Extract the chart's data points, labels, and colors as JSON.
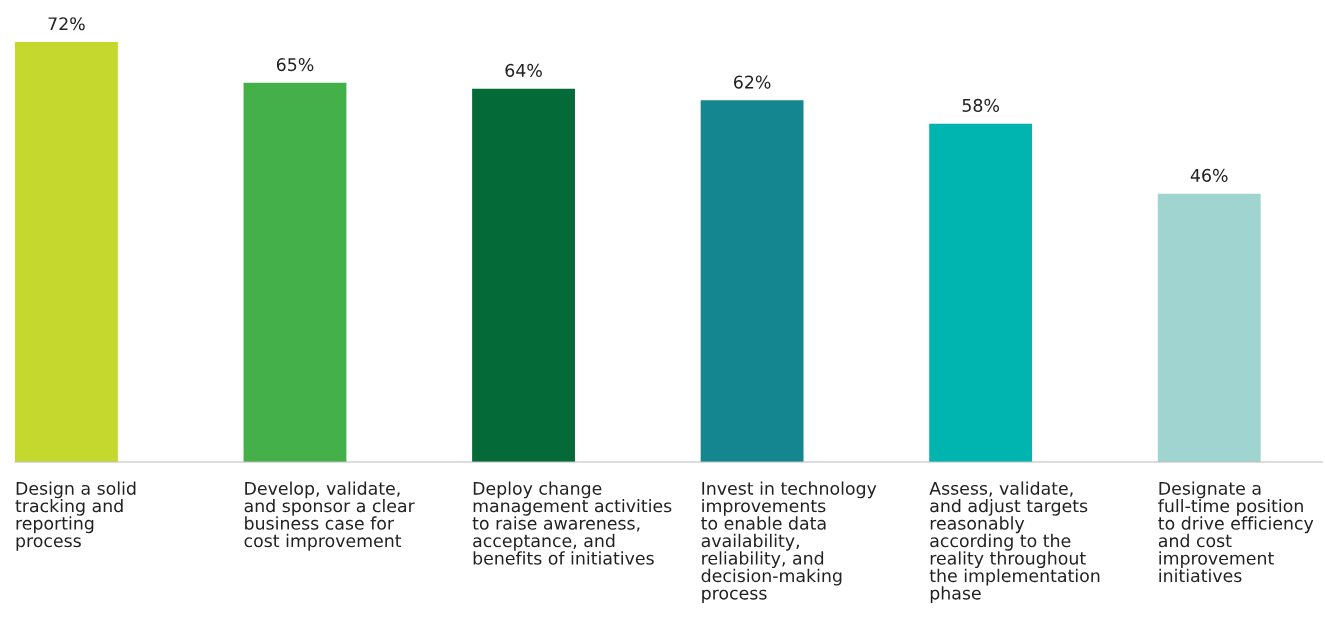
{
  "chart_data": {
    "type": "bar",
    "categories": [
      "Design a solid\ntracking and\nreporting\nprocess",
      "Develop, validate,\nand sponsor a clear\nbusiness case for\ncost improvement",
      "Deploy change\nmanagement activities\nto raise awareness,\nacceptance, and\nbenefits of initiatives",
      "Invest in technology\nimprovements\nto enable data\navailability,\nreliability, and\ndecision-making\nprocess",
      "Assess, validate,\nand adjust targets\nreasonably\naccording to the\nreality throughout\nthe implementation\nphase",
      "Designate a\nfull-time position\nto drive efficiency\nand cost\nimprovement\ninitiatives"
    ],
    "values": [
      72,
      65,
      64,
      62,
      58,
      46
    ],
    "colors": [
      "#c5d82e",
      "#43b04a",
      "#046a38",
      "#13868f",
      "#00b4b0",
      "#9fd4d0"
    ],
    "value_labels": [
      "72%",
      "65%",
      "64%",
      "62%",
      "58%",
      "46%"
    ],
    "grid": false,
    "legend": false
  }
}
